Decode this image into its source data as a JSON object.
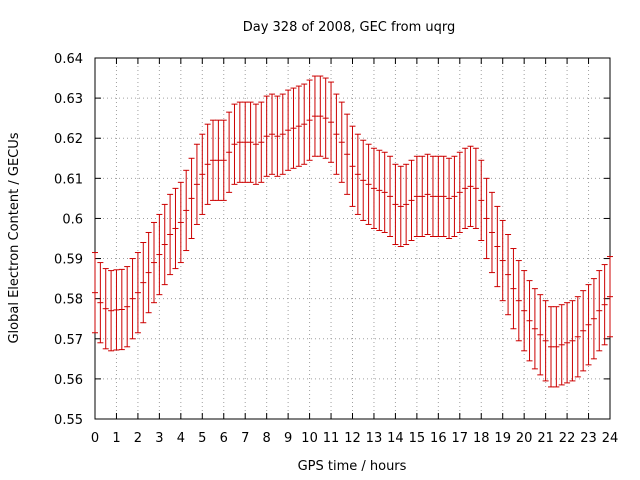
{
  "chart_data": {
    "type": "errorbar",
    "title": "Day 328 of 2008, GEC from uqrg",
    "xlabel": "GPS time / hours",
    "ylabel": "Global Electron Content / GECUs",
    "xlim": [
      0,
      24
    ],
    "ylim": [
      0.55,
      0.64
    ],
    "xticks": [
      0,
      1,
      2,
      3,
      4,
      5,
      6,
      7,
      8,
      9,
      10,
      11,
      12,
      13,
      14,
      15,
      16,
      17,
      18,
      19,
      20,
      21,
      22,
      23,
      24
    ],
    "yticks": [
      0.55,
      0.56,
      0.57,
      0.58,
      0.59,
      0.6,
      0.61,
      0.62,
      0.63,
      0.64
    ],
    "ytick_labels": [
      "0.55",
      "0.56",
      "0.57",
      "0.58",
      "0.59",
      "0.6",
      "0.61",
      "0.62",
      "0.63",
      "0.64"
    ],
    "grid": true,
    "error": 0.01,
    "color": "#cc0000",
    "x": [
      0,
      0.25,
      0.5,
      0.75,
      1,
      1.25,
      1.5,
      1.75,
      2,
      2.25,
      2.5,
      2.75,
      3,
      3.25,
      3.5,
      3.75,
      4,
      4.25,
      4.5,
      4.75,
      5,
      5.25,
      5.5,
      5.75,
      6,
      6.25,
      6.5,
      6.75,
      7,
      7.25,
      7.5,
      7.75,
      8,
      8.25,
      8.5,
      8.75,
      9,
      9.25,
      9.5,
      9.75,
      10,
      10.25,
      10.5,
      10.75,
      11,
      11.25,
      11.5,
      11.75,
      12,
      12.25,
      12.5,
      12.75,
      13,
      13.25,
      13.5,
      13.75,
      14,
      14.25,
      14.5,
      14.75,
      15,
      15.25,
      15.5,
      15.75,
      16,
      16.25,
      16.5,
      16.75,
      17,
      17.25,
      17.5,
      17.75,
      18,
      18.25,
      18.5,
      18.75,
      19,
      19.25,
      19.5,
      19.75,
      20,
      20.25,
      20.5,
      20.75,
      21,
      21.25,
      21.5,
      21.75,
      22,
      22.25,
      22.5,
      22.75,
      23,
      23.25,
      23.5,
      23.75,
      24
    ],
    "y": [
      0.5815,
      0.579,
      0.5775,
      0.577,
      0.5772,
      0.5773,
      0.578,
      0.58,
      0.5815,
      0.584,
      0.5865,
      0.589,
      0.591,
      0.5935,
      0.596,
      0.5975,
      0.599,
      0.602,
      0.605,
      0.6085,
      0.611,
      0.6135,
      0.6145,
      0.6145,
      0.6145,
      0.6165,
      0.6185,
      0.619,
      0.619,
      0.619,
      0.6185,
      0.619,
      0.6205,
      0.621,
      0.6205,
      0.621,
      0.622,
      0.6225,
      0.623,
      0.6235,
      0.6245,
      0.6255,
      0.6255,
      0.625,
      0.624,
      0.621,
      0.619,
      0.616,
      0.613,
      0.611,
      0.6095,
      0.6085,
      0.6075,
      0.607,
      0.6065,
      0.6055,
      0.6035,
      0.603,
      0.6035,
      0.6045,
      0.6055,
      0.6055,
      0.606,
      0.6055,
      0.6055,
      0.6055,
      0.605,
      0.6055,
      0.6065,
      0.6075,
      0.608,
      0.6075,
      0.6045,
      0.6,
      0.5965,
      0.593,
      0.5895,
      0.586,
      0.5825,
      0.5795,
      0.577,
      0.5745,
      0.5725,
      0.571,
      0.5695,
      0.568,
      0.568,
      0.5685,
      0.569,
      0.5695,
      0.5705,
      0.572,
      0.5735,
      0.575,
      0.577,
      0.5785,
      0.5805
    ]
  }
}
